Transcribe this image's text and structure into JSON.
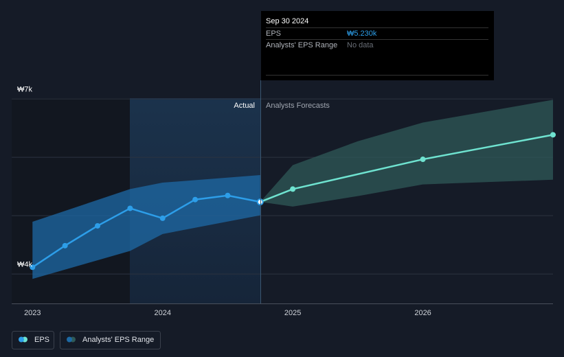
{
  "chart_data": {
    "type": "line",
    "xlim": [
      2022.84,
      2027
    ],
    "xticks": [
      2023,
      2024,
      2025,
      2026
    ],
    "ylim": [
      3.49,
      7.3
    ],
    "yticks": [
      {
        "value": 7,
        "label": "₩7k"
      },
      {
        "value": 6,
        "label": null
      },
      {
        "value": 5,
        "label": null
      },
      {
        "value": 4,
        "label": "₩4k"
      }
    ],
    "grid": true,
    "section_labels": [
      "Actual",
      "Analysts Forecasts"
    ],
    "series": [
      {
        "name": "EPS",
        "color": "#2d9ee9",
        "x": [
          2023.0,
          2023.25,
          2023.5,
          2023.75,
          2024.0,
          2024.25,
          2024.5,
          2024.75
        ],
        "values": [
          4.11,
          4.48,
          4.82,
          5.12,
          4.95,
          5.27,
          5.34,
          5.23
        ]
      }
    ],
    "forecast": {
      "color": "#6fe3d0",
      "x": [
        2024.75,
        2025.0,
        2026.0,
        2027.0
      ],
      "values": [
        5.23,
        5.45,
        5.96,
        6.38
      ]
    },
    "range": {
      "name": "Analysts' EPS Range",
      "color": "#2f5a58",
      "x": [
        2024.75,
        2025.0,
        2025.5,
        2026.0,
        2027.0
      ],
      "upper": [
        5.23,
        5.86,
        6.27,
        6.59,
        6.98
      ],
      "lower": [
        5.23,
        5.15,
        5.33,
        5.53,
        5.61
      ]
    },
    "actual_band": {
      "color": "#1d6aa5",
      "x": [
        2023.0,
        2023.75,
        2024.0,
        2024.75
      ],
      "upper": [
        4.89,
        5.45,
        5.56,
        5.69
      ],
      "lower": [
        3.91,
        4.39,
        4.68,
        5.0
      ]
    },
    "tooltip": {
      "date": "Sep 30 2024",
      "rows": [
        {
          "label": "EPS",
          "value": "₩5.230k"
        },
        {
          "label": "Analysts' EPS Range",
          "value": "No data"
        }
      ]
    }
  }
}
